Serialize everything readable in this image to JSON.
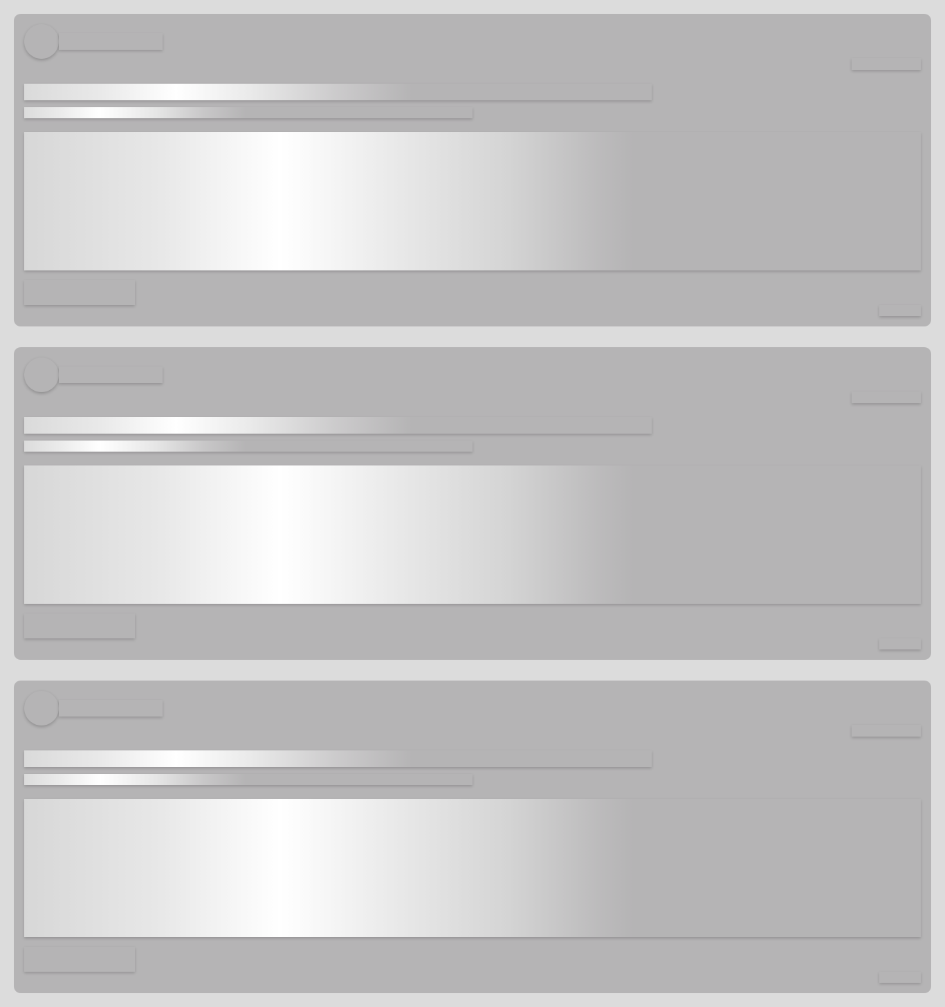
{
  "page": {
    "state": "loading-skeleton"
  },
  "feed": {
    "placeholder_cards": [
      {
        "kind": "post-skeleton"
      },
      {
        "kind": "post-skeleton"
      },
      {
        "kind": "post-skeleton"
      }
    ]
  },
  "colors": {
    "page_background": "#dcdcdc",
    "skeleton_base": "#b5b4b5",
    "shimmer_highlight": "#ffffff"
  }
}
